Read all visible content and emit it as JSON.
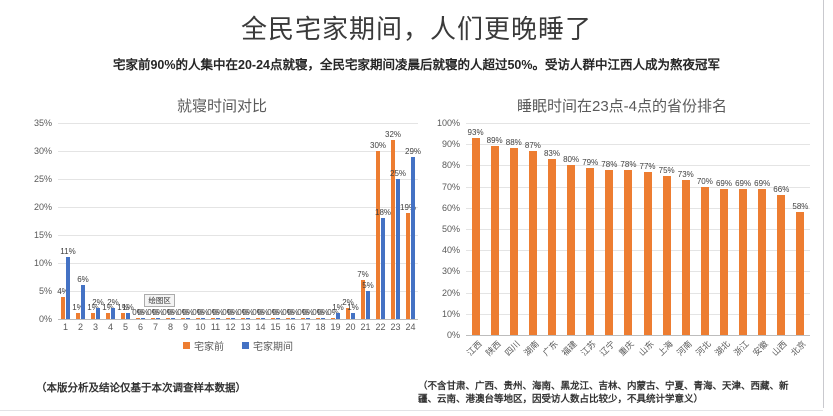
{
  "page": {
    "title": "全民宅家期间，人们更晚睡了",
    "subtitle": "宅家前90%的人集中在20-24点就寝，全民宅家期间凌晨后就寝的人超过50%。受访人群中江西人成为熬夜冠军",
    "footnote_left": "（本版分析及结论仅基于本次调查样本数据）",
    "footnote_right": "（不含甘肃、广西、贵州、海南、黑龙江、吉林、内蒙古、宁夏、青海、天津、西藏、新疆、云南、港澳台等地区，因受访人数占比较少，不具统计学意义）"
  },
  "colors": {
    "orange": "#ED7D31",
    "blue": "#4472C4"
  },
  "chart_data": [
    {
      "type": "bar",
      "title": "就寝时间对比",
      "categories": [
        "1",
        "2",
        "3",
        "4",
        "5",
        "6",
        "7",
        "8",
        "9",
        "10",
        "11",
        "12",
        "13",
        "14",
        "15",
        "16",
        "17",
        "18",
        "19",
        "20",
        "21",
        "22",
        "23",
        "24"
      ],
      "series": [
        {
          "name": "宅家前",
          "color": "#ED7D31",
          "values": [
            4,
            1,
            1,
            1,
            1,
            0,
            0,
            0,
            0,
            0,
            0,
            0,
            0,
            0,
            0,
            0,
            0,
            0,
            0,
            2,
            7,
            30,
            32,
            19
          ]
        },
        {
          "name": "宅家期间",
          "color": "#4472C4",
          "values": [
            11,
            6,
            2,
            2,
            1,
            0,
            0,
            0,
            0,
            0,
            0,
            0,
            0,
            0,
            0,
            0,
            0,
            0,
            1,
            1,
            5,
            18,
            25,
            29
          ]
        }
      ],
      "xlabel": "",
      "ylabel": "",
      "ylim": [
        0,
        35
      ],
      "yticks": [
        "35%",
        "30%",
        "25%",
        "20%",
        "15%",
        "10%",
        "5%",
        "0%"
      ],
      "grid": true,
      "legend_position": "bottom",
      "plot_area_tooltip": "绘图区"
    },
    {
      "type": "bar",
      "title": "睡眠时间在23点-4点的省份排名",
      "categories": [
        "江西",
        "陕西",
        "四川",
        "湖南",
        "广东",
        "福建",
        "江苏",
        "辽宁",
        "重庆",
        "山东",
        "上海",
        "河南",
        "河北",
        "湖北",
        "浙江",
        "安徽",
        "山西",
        "北京"
      ],
      "values": [
        93,
        89,
        88,
        87,
        83,
        80,
        79,
        78,
        78,
        77,
        75,
        73,
        70,
        69,
        69,
        69,
        66,
        58
      ],
      "color": "#ED7D31",
      "xlabel": "",
      "ylabel": "",
      "ylim": [
        0,
        100
      ],
      "yticks": [
        "100%",
        "90%",
        "80%",
        "70%",
        "60%",
        "50%",
        "40%",
        "30%",
        "20%",
        "10%",
        "0%"
      ],
      "grid": true,
      "legend_position": "none"
    }
  ]
}
